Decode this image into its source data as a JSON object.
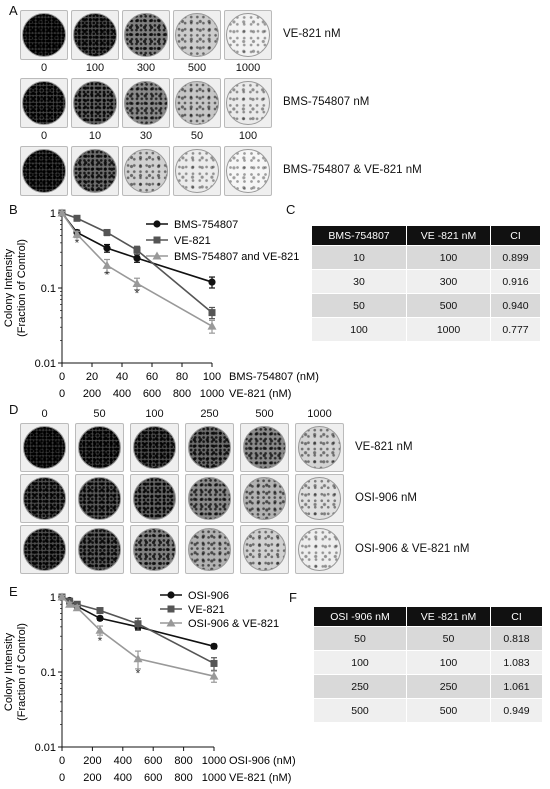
{
  "panels": {
    "A": {
      "letter": "A",
      "rows": [
        {
          "label": "VE-821 nM",
          "doses": [
            "0",
            "100",
            "300",
            "500",
            "1000"
          ],
          "density": [
            0.95,
            0.85,
            0.6,
            0.22,
            0.03
          ]
        },
        {
          "label": "BMS-754807 nM",
          "doses": [
            "0",
            "10",
            "30",
            "50",
            "100"
          ],
          "density": [
            0.9,
            0.75,
            0.55,
            0.25,
            0.07
          ]
        },
        {
          "label": "BMS-754807 & VE-821 nM",
          "doses": [],
          "density": [
            0.92,
            0.7,
            0.2,
            0.06,
            0.01
          ]
        }
      ]
    },
    "B": {
      "letter": "B"
    },
    "C": {
      "letter": "C",
      "headers": [
        "BMS-754807",
        "VE -821  nM",
        "CI"
      ],
      "rows": [
        [
          "10",
          "100",
          "0.899"
        ],
        [
          "30",
          "300",
          "0.916"
        ],
        [
          "50",
          "500",
          "0.940"
        ],
        [
          "100",
          "1000",
          "0.777"
        ]
      ]
    },
    "D": {
      "letter": "D",
      "doses": [
        "0",
        "50",
        "100",
        "250",
        "500",
        "1000"
      ],
      "rows": [
        {
          "label": "VE-821 nM",
          "density": [
            0.95,
            0.9,
            0.85,
            0.7,
            0.55,
            0.18
          ]
        },
        {
          "label": "OSI-906 nM",
          "density": [
            0.85,
            0.8,
            0.75,
            0.55,
            0.35,
            0.12
          ]
        },
        {
          "label": "OSI-906 & VE-821 nM",
          "density": [
            0.85,
            0.78,
            0.6,
            0.35,
            0.2,
            0.05
          ]
        }
      ]
    },
    "E": {
      "letter": "E"
    },
    "F": {
      "letter": "F",
      "headers": [
        "OSI -906  nM",
        "VE -821  nM",
        "CI"
      ],
      "rows": [
        [
          "50",
          "50",
          "0.818"
        ],
        [
          "100",
          "100",
          "1.083"
        ],
        [
          "250",
          "250",
          "1.061"
        ],
        [
          "500",
          "500",
          "0.949"
        ]
      ]
    }
  },
  "chart_data": [
    {
      "panel": "B",
      "type": "line",
      "ylabel": "Colony Intensity (Fraction of Control)",
      "yscale": "log",
      "ylim": [
        0.01,
        1
      ],
      "yticks": [
        "1",
        "0.1",
        "0.01"
      ],
      "xlabel": "BMS-754807 (nM)",
      "xlabel2": "VE-821 (nM)",
      "xticks": [
        "0",
        "20",
        "40",
        "60",
        "80",
        "100"
      ],
      "xticks2": [
        "0",
        "200",
        "400",
        "600",
        "800",
        "1000"
      ],
      "xlim": [
        0,
        100
      ],
      "series": [
        {
          "name": "BMS-754807",
          "color": "#111111",
          "marker": "circle",
          "x": [
            0,
            10,
            30,
            50,
            100
          ],
          "y": [
            1.0,
            0.55,
            0.34,
            0.25,
            0.12
          ],
          "err": [
            0.05,
            0.04,
            0.04,
            0.03,
            0.02
          ]
        },
        {
          "name": "VE-821",
          "color": "#555555",
          "marker": "square",
          "x": [
            0,
            10,
            30,
            50,
            100
          ],
          "y": [
            1.0,
            0.85,
            0.55,
            0.32,
            0.047
          ],
          "err": [
            0.05,
            0.05,
            0.05,
            0.04,
            0.008
          ]
        },
        {
          "name": "BMS-754807 and VE-821",
          "color": "#999999",
          "marker": "triangle",
          "x": [
            0,
            10,
            30,
            50,
            100
          ],
          "y": [
            1.0,
            0.52,
            0.2,
            0.115,
            0.031
          ],
          "err": [
            0.05,
            0.05,
            0.04,
            0.02,
            0.006
          ]
        }
      ],
      "annotations": [
        {
          "text": "*",
          "x": 10,
          "y": 0.4
        },
        {
          "text": "*",
          "x": 30,
          "y": 0.15
        },
        {
          "text": "*",
          "x": 50,
          "y": 0.085
        }
      ]
    },
    {
      "panel": "E",
      "type": "line",
      "ylabel": "Colony Intensity (Fraction of Control)",
      "yscale": "log",
      "ylim": [
        0.01,
        1
      ],
      "yticks": [
        "1",
        "0.1",
        "0.01"
      ],
      "xlabel": "OSI-906 (nM)",
      "xlabel2": "VE-821 (nM)",
      "xticks": [
        "0",
        "200",
        "400",
        "600",
        "800",
        "1000"
      ],
      "xticks2": [
        "0",
        "200",
        "400",
        "600",
        "800",
        "1000"
      ],
      "xlim": [
        0,
        1000
      ],
      "series": [
        {
          "name": "OSI-906",
          "color": "#111111",
          "marker": "circle",
          "x": [
            0,
            50,
            100,
            250,
            500,
            1000
          ],
          "y": [
            1.0,
            0.9,
            0.75,
            0.52,
            0.4,
            0.22
          ],
          "err": [
            0.05,
            0.04,
            0.04,
            0.03,
            0.03,
            0.015
          ]
        },
        {
          "name": "VE-821",
          "color": "#555555",
          "marker": "square",
          "x": [
            0,
            50,
            100,
            250,
            500,
            1000
          ],
          "y": [
            1.0,
            0.88,
            0.8,
            0.66,
            0.44,
            0.13
          ],
          "err": [
            0.05,
            0.05,
            0.05,
            0.05,
            0.08,
            0.025
          ]
        },
        {
          "name": "OSI-906 & VE-821",
          "color": "#999999",
          "marker": "triangle",
          "x": [
            0,
            50,
            100,
            250,
            500,
            1000
          ],
          "y": [
            1.0,
            0.8,
            0.72,
            0.36,
            0.15,
            0.088
          ],
          "err": [
            0.05,
            0.05,
            0.05,
            0.05,
            0.04,
            0.015
          ]
        }
      ],
      "annotations": [
        {
          "text": "*",
          "x": 250,
          "y": 0.26
        },
        {
          "text": "*",
          "x": 500,
          "y": 0.095
        }
      ]
    }
  ]
}
